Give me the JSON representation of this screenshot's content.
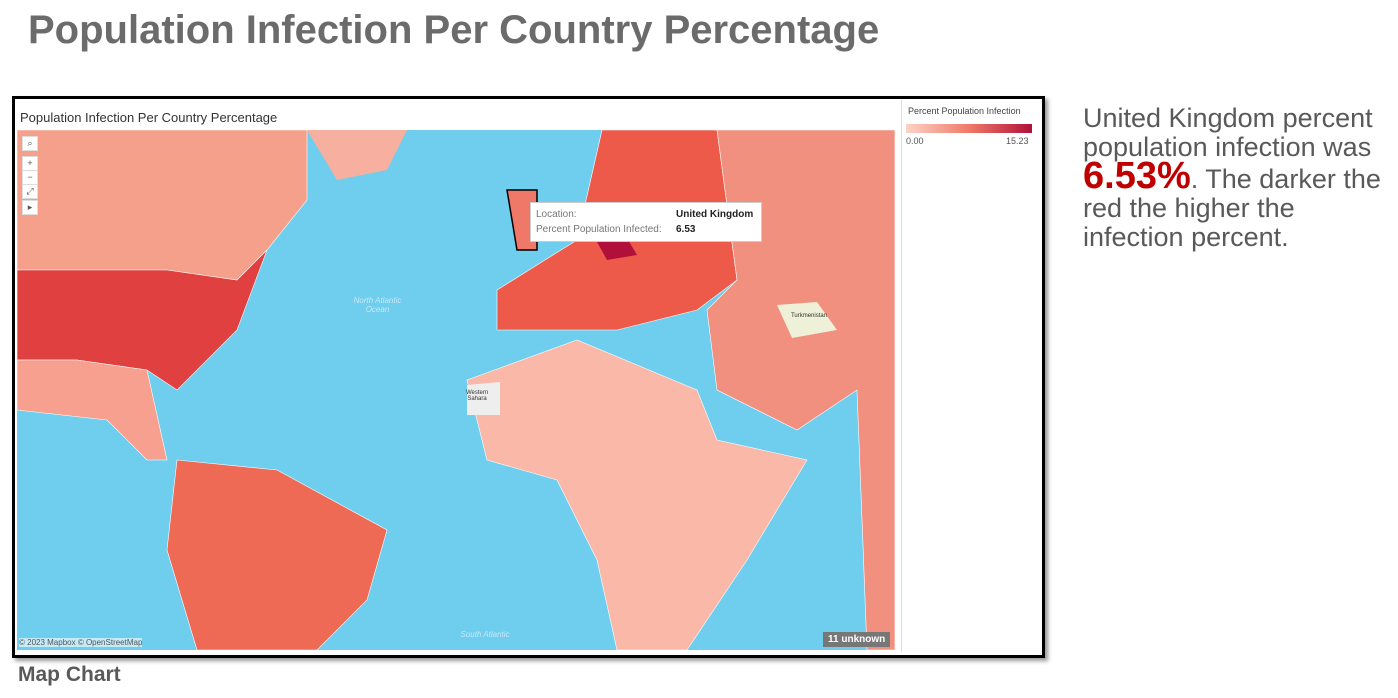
{
  "header": {
    "title": "Population Infection Per Country Percentage"
  },
  "map": {
    "title": "Population Infection Per Country Percentage",
    "legend": {
      "title": "Percent Population Infection",
      "min": {
        "value": 0,
        "label": "0.00"
      },
      "max": {
        "value": 15.23,
        "label": "15.23"
      }
    },
    "tooltip": {
      "location_label": "Location:",
      "location": "United Kingdom",
      "value_label": "Percent Population Infected:",
      "value": 6.53
    },
    "labels": {
      "ocean_north": "North Atlantic Ocean",
      "ocean_south": "South Atlantic",
      "western_sahara": "Western Sahara",
      "turkmenistan": "Turkmenistan"
    },
    "attribution": "© 2023 Mapbox © OpenStreetMap",
    "unknown": "11 unknown"
  },
  "caption": "Map Chart",
  "note": {
    "before": "United Kingdom percent population infection was ",
    "highlight": "6.53%",
    "after": ". The darker the red the higher the infection percent."
  }
}
